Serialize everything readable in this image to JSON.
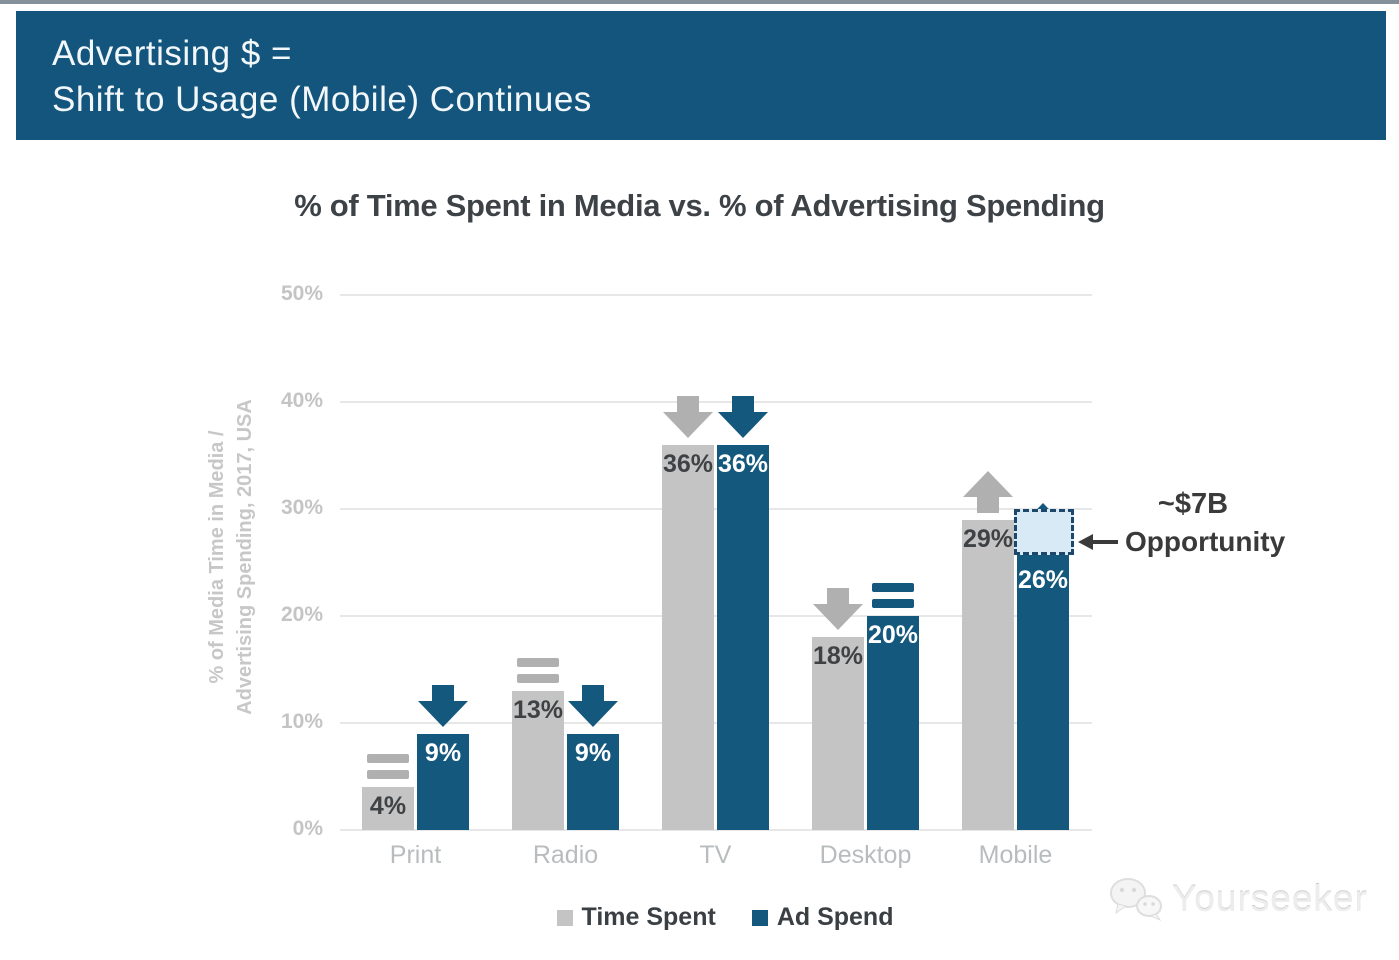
{
  "header": {
    "line1": "Advertising $ =",
    "line2": "Shift to Usage (Mobile) Continues"
  },
  "chart_data": {
    "type": "bar",
    "title": "% of Time Spent in Media vs. % of Advertising Spending",
    "ylabel_lines": [
      "% of Media Time in Media /",
      "Advertising Spending, 2017, USA"
    ],
    "categories": [
      "Print",
      "Radio",
      "TV",
      "Desktop",
      "Mobile"
    ],
    "series": [
      {
        "name": "Time Spent",
        "color": "#c4c4c4",
        "trend_color": "#b0b0b0",
        "label_color": "#3f4245",
        "values": [
          4,
          13,
          36,
          18,
          29
        ],
        "labels": [
          "4%",
          "13%",
          "36%",
          "18%",
          "29%"
        ],
        "trends": [
          "equal",
          "equal",
          "down",
          "down",
          "up"
        ]
      },
      {
        "name": "Ad Spend",
        "color": "#15587e",
        "trend_color": "#15587e",
        "label_color": "#ffffff",
        "values": [
          9,
          9,
          36,
          20,
          26
        ],
        "labels": [
          "9%",
          "9%",
          "36%",
          "20%",
          "26%"
        ],
        "trends": [
          "down",
          "down",
          "down",
          "equal",
          "up"
        ]
      }
    ],
    "yticks": [
      "50%",
      "40%",
      "30%",
      "20%",
      "10%",
      "0%"
    ],
    "ylim": [
      0,
      50
    ],
    "grid": true,
    "legend_position": "bottom",
    "opportunity": {
      "label_line1": "~$7B",
      "label_line2": "Opportunity",
      "category": "Mobile",
      "series": "Ad Spend",
      "from_value": 26,
      "to_value": 30
    }
  },
  "watermark": {
    "text": "Yourseeker"
  },
  "colors": {
    "banner_blue": "#14557d",
    "bar_blue": "#15587e",
    "bar_gray": "#c4c4c4",
    "arrow_gray": "#b0b0b0",
    "gridline": "#e7e7e7",
    "axis_text": "#c4c4c4",
    "dark_text": "#3d4247",
    "opportunity_fill": "#d8eaf6",
    "opportunity_border": "#1d486c"
  }
}
